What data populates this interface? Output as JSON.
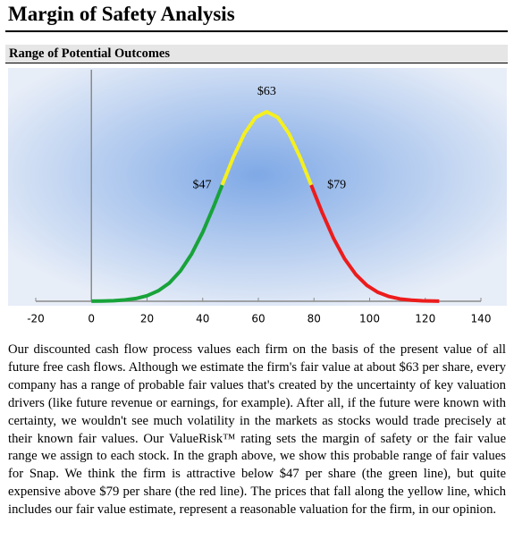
{
  "header": {
    "title": "Margin of Safety Analysis",
    "section": "Range of Potential Outcomes"
  },
  "chart_data": {
    "type": "line",
    "xlim": [
      -20,
      140
    ],
    "xticks": [
      -20,
      0,
      20,
      40,
      60,
      80,
      100,
      120,
      140
    ],
    "ylim": [
      0,
      100
    ],
    "series": [
      {
        "color": "#18a33a",
        "x": [
          0,
          4,
          8,
          12,
          16,
          20,
          24,
          28,
          32,
          36,
          40,
          44,
          47
        ],
        "values": [
          0.05,
          0.13,
          0.31,
          0.7,
          1.47,
          2.93,
          5.5,
          9.6,
          16,
          24.9,
          36.4,
          50.2,
          61.3
        ]
      },
      {
        "color": "#f5f01e",
        "x": [
          47,
          51,
          55,
          59,
          63,
          67,
          71,
          75,
          79
        ],
        "values": [
          61.3,
          76,
          88.5,
          97,
          100,
          97,
          88.5,
          76,
          61.3
        ]
      },
      {
        "color": "#ec1c1c",
        "x": [
          79,
          83,
          87,
          91,
          95,
          99,
          103,
          107,
          111,
          115,
          119,
          125
        ],
        "values": [
          61.3,
          46.6,
          33.3,
          22.4,
          14.2,
          8.4,
          4.7,
          2.5,
          1.2,
          0.57,
          0.25,
          0.07
        ]
      }
    ],
    "markers": {
      "values": [
        47,
        63,
        79
      ],
      "value_labels": [
        "$47",
        "$63",
        "$79"
      ]
    }
  },
  "body": {
    "paragraph": "Our discounted cash flow process values each firm on the basis of the present value of all future free cash flows. Although we estimate the firm's fair value at about $63 per share, every company has a range of probable fair values that's created by the uncertainty of key valuation drivers (like future revenue or earnings, for example). After all, if the future were known with certainty, we wouldn't see much volatility in the markets as stocks would trade precisely at their known fair values. Our ValueRisk™ rating sets the margin of safety or the fair value range we assign to each stock. In the graph above, we show this probable range of fair values for Snap. We think the firm is attractive below $47 per share (the green line), but quite expensive above $79 per share (the red line). The prices that fall along the yellow line, which includes our fair value estimate, represent a reasonable valuation for the firm, in our opinion."
  }
}
